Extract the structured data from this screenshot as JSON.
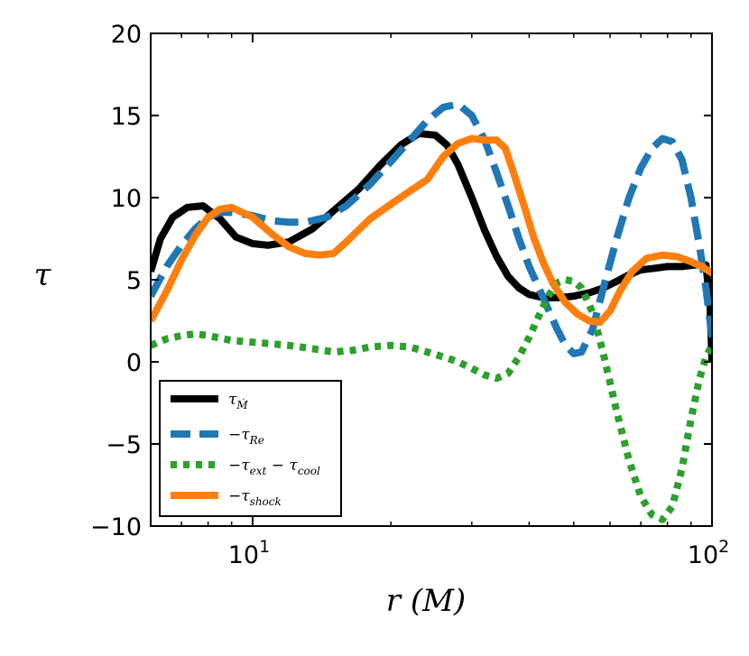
{
  "chart_data": {
    "type": "line",
    "xscale": "log",
    "xlim": [
      6.0,
      100
    ],
    "ylim": [
      -10,
      20
    ],
    "xlabel": "r (M)",
    "ylabel": "τ",
    "yticks": [
      -10,
      -5,
      0,
      5,
      10,
      15,
      20
    ],
    "ytick_labels": [
      "−10",
      "−5",
      "0",
      "5",
      "10",
      "15",
      "20"
    ],
    "xticks": [
      {
        "value": 10,
        "base": "10",
        "exp": "1"
      },
      {
        "value": 100,
        "base": "10",
        "exp": "2"
      }
    ],
    "legend_position": "lower-left",
    "series": [
      {
        "name": "tau_Mdot",
        "label": {
          "prefix": "τ",
          "sub": "Ṁ"
        },
        "color": "#000000",
        "style": "solid",
        "x": [
          6.0,
          6.3,
          6.7,
          7.2,
          7.8,
          8.5,
          9.2,
          10.0,
          10.8,
          12.0,
          13.5,
          15.0,
          17.0,
          19.0,
          21.0,
          23.0,
          25.0,
          26.5,
          28.0,
          30.0,
          32.0,
          34.0,
          36.0,
          38.0,
          40.0,
          43.0,
          46.0,
          50.0,
          54.0,
          58.0,
          62.0,
          66.0,
          70.0,
          75.0,
          80.0,
          86.0,
          92.0,
          97.0,
          99.0,
          100.0
        ],
        "values": [
          5.5,
          7.5,
          8.8,
          9.4,
          9.5,
          8.7,
          7.6,
          7.2,
          7.1,
          7.3,
          8.1,
          9.2,
          10.5,
          12.0,
          13.2,
          13.9,
          13.8,
          13.2,
          12.0,
          10.0,
          8.0,
          6.4,
          5.2,
          4.5,
          4.1,
          3.9,
          3.9,
          4.0,
          4.2,
          4.5,
          4.9,
          5.3,
          5.6,
          5.7,
          5.8,
          5.8,
          5.9,
          5.9,
          3.5,
          0.0
        ]
      },
      {
        "name": "minus_tau_Re",
        "label": {
          "prefix": "−τ",
          "sub": "Re"
        },
        "color": "#1f77b4",
        "style": "dashed",
        "x": [
          6.0,
          6.5,
          7.0,
          7.5,
          8.0,
          8.5,
          9.0,
          10.0,
          11.0,
          12.0,
          13.0,
          14.5,
          16.0,
          18.0,
          20.0,
          22.0,
          24.0,
          26.0,
          28.0,
          30.0,
          32.0,
          34.0,
          36.0,
          38.0,
          40.0,
          42.0,
          44.0,
          46.0,
          48.0,
          50.0,
          52.0,
          55.0,
          58.0,
          62.0,
          66.0,
          70.0,
          74.0,
          78.0,
          82.0,
          86.0,
          90.0,
          94.0,
          97.0,
          100.0
        ],
        "values": [
          4.0,
          5.8,
          7.1,
          8.1,
          8.8,
          9.1,
          9.1,
          8.9,
          8.6,
          8.5,
          8.5,
          8.8,
          9.5,
          10.8,
          12.2,
          13.5,
          14.7,
          15.5,
          15.7,
          15.0,
          13.5,
          11.5,
          9.5,
          7.5,
          5.8,
          4.5,
          3.2,
          2.0,
          1.0,
          0.5,
          0.6,
          2.0,
          4.5,
          7.5,
          10.0,
          11.8,
          13.0,
          13.6,
          13.4,
          12.3,
          10.0,
          7.0,
          4.5,
          1.5
        ]
      },
      {
        "name": "minus_tau_ext_minus_tau_cool",
        "label": {
          "prefix": "−τ",
          "sub": "ext",
          "mid": " − τ",
          "sub2": "cool"
        },
        "color": "#2ca02c",
        "style": "dotted",
        "x": [
          6.0,
          6.5,
          7.0,
          7.5,
          8.0,
          9.0,
          10.0,
          11.0,
          12.0,
          13.5,
          15.0,
          16.5,
          18.0,
          20.0,
          22.0,
          24.0,
          26.0,
          28.0,
          30.0,
          32.0,
          34.0,
          36.0,
          38.0,
          40.0,
          42.0,
          44.0,
          46.0,
          48.0,
          50.0,
          52.0,
          55.0,
          58.0,
          62.0,
          66.0,
          70.0,
          74.0,
          78.0,
          82.0,
          86.0,
          90.0,
          94.0,
          97.0,
          100.0
        ],
        "values": [
          1.0,
          1.4,
          1.6,
          1.7,
          1.6,
          1.3,
          1.2,
          1.1,
          1.0,
          0.8,
          0.6,
          0.7,
          0.9,
          1.0,
          0.9,
          0.6,
          0.3,
          0.0,
          -0.4,
          -0.8,
          -1.0,
          -0.7,
          0.3,
          1.5,
          2.8,
          4.0,
          4.8,
          5.0,
          4.9,
          4.5,
          3.0,
          0.5,
          -3.0,
          -6.0,
          -8.2,
          -9.3,
          -9.6,
          -8.8,
          -6.5,
          -3.5,
          -1.0,
          0.3,
          1.0
        ]
      },
      {
        "name": "minus_tau_shock",
        "label": {
          "prefix": "−τ",
          "sub": "shock"
        },
        "color": "#ff7f0e",
        "style": "solid",
        "x": [
          6.0,
          6.5,
          7.0,
          7.5,
          8.0,
          8.5,
          9.0,
          10.0,
          11.0,
          12.0,
          13.0,
          14.0,
          15.0,
          16.0,
          18.0,
          20.0,
          22.0,
          24.0,
          26.0,
          28.0,
          30.0,
          32.0,
          34.0,
          35.5,
          37.0,
          39.0,
          41.0,
          43.0,
          45.0,
          48.0,
          51.0,
          54.0,
          57.0,
          60.0,
          63.0,
          67.0,
          72.0,
          78.0,
          84.0,
          90.0,
          95.0,
          100.0
        ],
        "values": [
          2.5,
          4.3,
          6.2,
          7.7,
          8.8,
          9.3,
          9.4,
          8.8,
          7.8,
          7.0,
          6.6,
          6.5,
          6.6,
          7.3,
          8.7,
          9.6,
          10.4,
          11.1,
          12.5,
          13.3,
          13.6,
          13.5,
          13.5,
          13.0,
          11.5,
          9.5,
          7.5,
          6.0,
          4.8,
          3.6,
          2.9,
          2.5,
          2.4,
          3.1,
          4.3,
          5.5,
          6.3,
          6.5,
          6.4,
          6.1,
          5.8,
          5.4
        ]
      }
    ]
  }
}
